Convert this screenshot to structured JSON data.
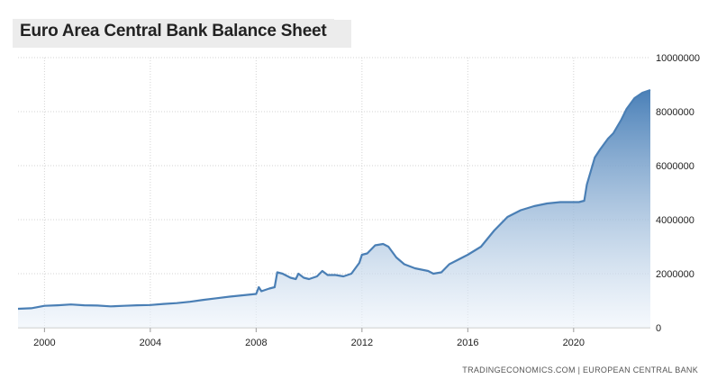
{
  "page": {
    "title": "Euro Area Central Bank Balance Sheet"
  },
  "source": {
    "text": "TRADINGECONOMICS.COM  |  EUROPEAN CENTRAL BANK"
  },
  "colors": {
    "line": "#4a7fb5",
    "fill_top": "#4a80b8",
    "fill_bottom": "#eef4fb",
    "grid": "#d3d3d3"
  },
  "chart_data": {
    "type": "area",
    "title": "Euro Area Central Bank Balance Sheet",
    "xlabel": "",
    "ylabel": "",
    "xlim": [
      1999.0,
      2022.9
    ],
    "ylim": [
      0,
      10000000
    ],
    "x_ticks": [
      2000,
      2004,
      2008,
      2012,
      2016,
      2020
    ],
    "x_tick_labels": [
      "2000",
      "2004",
      "2008",
      "2012",
      "2016",
      "2020"
    ],
    "y_ticks": [
      0,
      2000000,
      4000000,
      6000000,
      8000000,
      10000000
    ],
    "y_tick_labels": [
      "0",
      "2000000",
      "4000000",
      "6000000",
      "8000000",
      "10000000"
    ],
    "grid": true,
    "y_axis_position": "right",
    "series": [
      {
        "x": [
          1999.0,
          1999.5,
          2000.0,
          2000.5,
          2001.0,
          2001.5,
          2002.0,
          2002.5,
          2003.0,
          2003.5,
          2004.0,
          2004.5,
          2005.0,
          2005.5,
          2006.0,
          2006.5,
          2007.0,
          2007.5,
          2008.0,
          2008.1,
          2008.2,
          2008.5,
          2008.7,
          2008.8,
          2009.0,
          2009.3,
          2009.5,
          2009.6,
          2009.8,
          2010.0,
          2010.3,
          2010.5,
          2010.7,
          2011.0,
          2011.3,
          2011.6,
          2011.9,
          2012.0,
          2012.2,
          2012.5,
          2012.8,
          2013.0,
          2013.3,
          2013.6,
          2014.0,
          2014.5,
          2014.7,
          2015.0,
          2015.3,
          2015.6,
          2016.0,
          2016.5,
          2017.0,
          2017.5,
          2018.0,
          2018.5,
          2019.0,
          2019.5,
          2020.0,
          2020.2,
          2020.4,
          2020.5,
          2020.8,
          2021.0,
          2021.3,
          2021.5,
          2021.8,
          2022.0,
          2022.3,
          2022.6,
          2022.9
        ],
        "y": [
          700000,
          720000,
          810000,
          830000,
          860000,
          830000,
          820000,
          790000,
          810000,
          830000,
          840000,
          880000,
          910000,
          960000,
          1030000,
          1090000,
          1150000,
          1200000,
          1250000,
          1500000,
          1350000,
          1450000,
          1500000,
          2050000,
          2000000,
          1850000,
          1800000,
          2000000,
          1850000,
          1800000,
          1900000,
          2100000,
          1950000,
          1950000,
          1900000,
          2000000,
          2400000,
          2700000,
          2750000,
          3050000,
          3100000,
          3000000,
          2600000,
          2350000,
          2200000,
          2100000,
          2000000,
          2050000,
          2350000,
          2500000,
          2700000,
          3000000,
          3600000,
          4100000,
          4350000,
          4500000,
          4600000,
          4650000,
          4650000,
          4650000,
          4700000,
          5300000,
          6300000,
          6600000,
          7000000,
          7200000,
          7700000,
          8100000,
          8500000,
          8700000,
          8800000
        ]
      }
    ]
  }
}
